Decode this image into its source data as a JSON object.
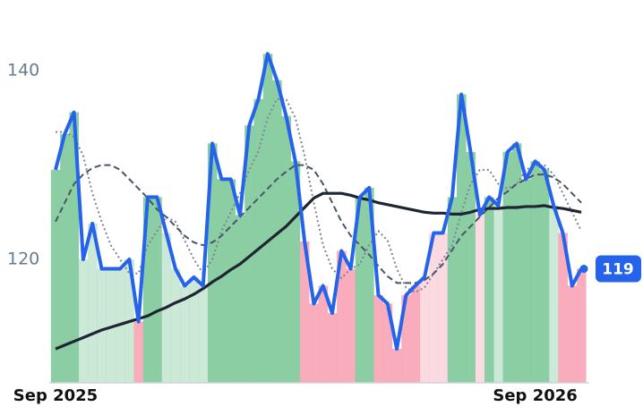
{
  "chart_data": {
    "type": "line",
    "categories": [
      "Sep 2025",
      null,
      null,
      null,
      null,
      null,
      null,
      null,
      null,
      null,
      null,
      null,
      null,
      null,
      null,
      null,
      null,
      null,
      null,
      null,
      null,
      null,
      null,
      null,
      null,
      null,
      null,
      null,
      null,
      null,
      null,
      null,
      null,
      null,
      null,
      null,
      null,
      null,
      null,
      null,
      null,
      null,
      null,
      null,
      null,
      null,
      null,
      null,
      null,
      null,
      null,
      null,
      "Sep 2026",
      null,
      null,
      null,
      null,
      null
    ],
    "ylim": [
      107,
      144
    ],
    "yticks": [
      120,
      140
    ],
    "grid": false,
    "up_color": "#7fc99a",
    "down_color": "#f7a3b5",
    "series": [
      {
        "color": "#2563eb",
        "values": [
          129.5,
          133.3,
          135.6,
          120,
          123.8,
          119,
          119,
          119,
          120,
          113.4,
          126.6,
          126.6,
          122.8,
          119,
          117.2,
          118.1,
          117.2,
          132.3,
          128.5,
          128.5,
          124.7,
          134.2,
          137,
          141.8,
          139,
          135.2,
          130.4,
          121.9,
          115.3,
          117.2,
          114.3,
          120.9,
          119,
          126.6,
          127.6,
          116.2,
          115.3,
          110.5,
          116.2,
          117.2,
          118.1,
          122.8,
          122.8,
          126.6,
          137.5,
          131.4,
          124.7,
          126.6,
          125.7,
          131.4,
          132.3,
          128.5,
          130.4,
          129.5,
          125.7,
          122.8,
          117.2,
          119
        ]
      },
      {
        "color": "#1f2533",
        "values": [
          110.5,
          110.9,
          111.3,
          111.7,
          112.1,
          112.5,
          112.8,
          113.1,
          113.4,
          113.7,
          114,
          114.5,
          114.9,
          115.4,
          115.8,
          116.3,
          116.9,
          117.6,
          118.2,
          118.9,
          119.5,
          120.3,
          121.1,
          121.9,
          122.7,
          123.5,
          124.5,
          125.5,
          126.5,
          127,
          127,
          127,
          126.8,
          126.5,
          126.3,
          126,
          125.8,
          125.6,
          125.4,
          125.2,
          125,
          124.9,
          124.9,
          124.8,
          124.8,
          125,
          125.3,
          125.4,
          125.4,
          125.5,
          125.5,
          125.6,
          125.6,
          125.7,
          125.5,
          125.4,
          125.2,
          125
        ]
      },
      {
        "color": "#4a5566",
        "dash": "7 4",
        "values": [
          124,
          126,
          128,
          129,
          129.7,
          130,
          130,
          129.5,
          128.5,
          127.5,
          126.5,
          125.3,
          124.5,
          123.5,
          122.5,
          121.8,
          121.5,
          121.8,
          122.5,
          123.5,
          124.5,
          125.5,
          126.5,
          127.5,
          128.5,
          129.3,
          130,
          130,
          129.5,
          128,
          126,
          124,
          122.5,
          121.5,
          120.5,
          119.3,
          118.2,
          117.5,
          117.5,
          117.5,
          117.8,
          118.5,
          119.5,
          121,
          122.5,
          123.5,
          124.5,
          125.5,
          126.5,
          127.2,
          128,
          128.5,
          129,
          129,
          128.7,
          128,
          127,
          126
        ]
      },
      {
        "color": "#7a8596",
        "dash": "2 3",
        "values": [
          133.5,
          133.5,
          133,
          131,
          127,
          124,
          121.5,
          120,
          118.5,
          118.5,
          121.5,
          123,
          124.5,
          124,
          122,
          120,
          118.5,
          120,
          123,
          125,
          127,
          129.5,
          131.5,
          135,
          137,
          137,
          135,
          131,
          126,
          121.5,
          119,
          118,
          119,
          119.5,
          121.5,
          123,
          122,
          119,
          117,
          116.5,
          117,
          118.5,
          120,
          121.5,
          125,
          128,
          129.5,
          129.5,
          128,
          127.5,
          128,
          129.5,
          130,
          130,
          129,
          127,
          125,
          123
        ]
      }
    ]
  }
}
